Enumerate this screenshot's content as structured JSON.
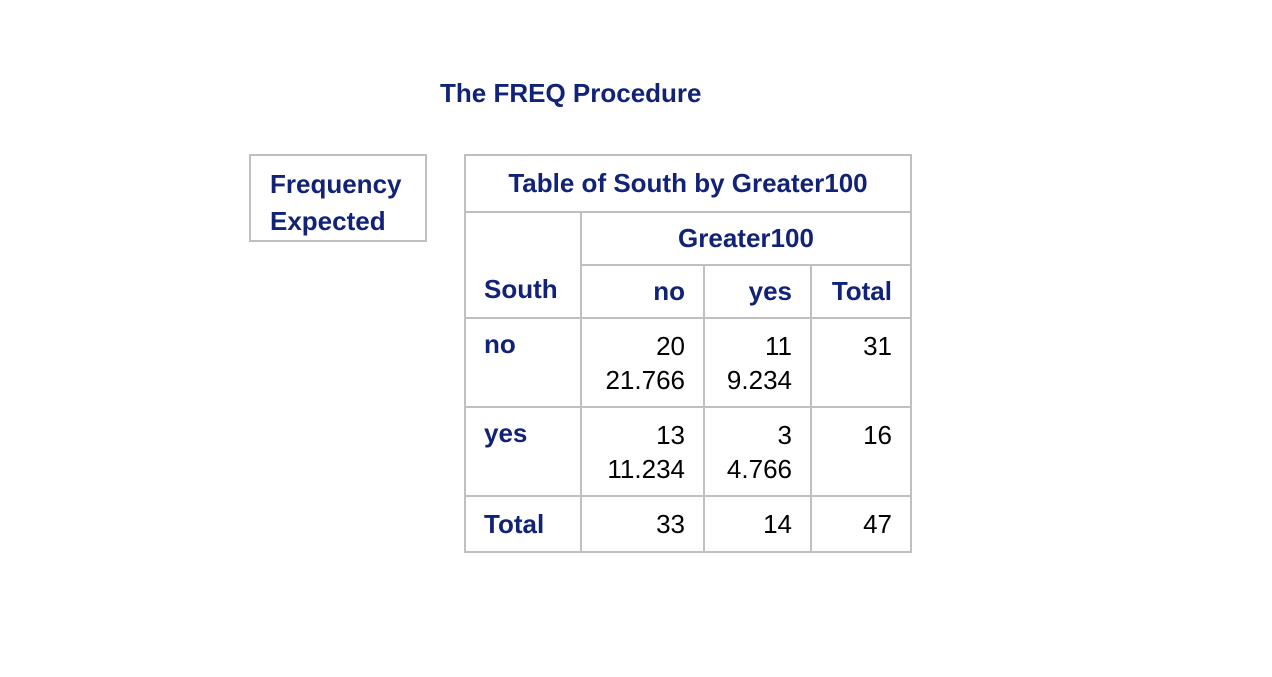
{
  "procedure_title": "The FREQ Procedure",
  "legend": {
    "line1": "Frequency",
    "line2": "Expected"
  },
  "table": {
    "caption": "Table of South by Greater100",
    "column_variable": "Greater100",
    "row_variable": "South",
    "columns": [
      "no",
      "yes",
      "Total"
    ],
    "rows": [
      {
        "label": "no",
        "cells": [
          {
            "frequency": "20",
            "expected": "21.766"
          },
          {
            "frequency": "11",
            "expected": "9.234"
          },
          {
            "frequency": "31",
            "expected": ""
          }
        ]
      },
      {
        "label": "yes",
        "cells": [
          {
            "frequency": "13",
            "expected": "11.234"
          },
          {
            "frequency": "3",
            "expected": "4.766"
          },
          {
            "frequency": "16",
            "expected": ""
          }
        ]
      }
    ],
    "total_row": {
      "label": "Total",
      "cells": [
        "33",
        "14",
        "47"
      ]
    }
  },
  "colors": {
    "header_text": "#112277",
    "border": "#c0c0c0"
  }
}
